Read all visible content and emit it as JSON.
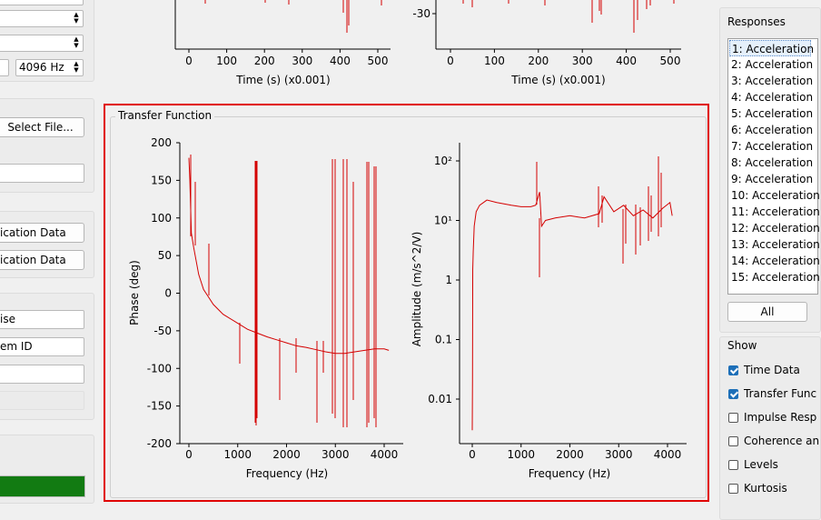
{
  "left": {
    "sample_rate": "4096 Hz",
    "select_file": "Select File...",
    "calib_btn_1": "ication Data",
    "calib_btn_2": "ication Data",
    "field_ise": "ise",
    "field_em_id": "em ID"
  },
  "top_plots": {
    "left_xlabel": "Time (s) (x0.001)",
    "right_xlabel": "Time (s) (x0.001)",
    "x_ticks": [
      "0",
      "100",
      "200",
      "300",
      "400",
      "500"
    ],
    "right_ytick": "-30"
  },
  "transfer_function": {
    "title": "Transfer Function",
    "phase_ylabel": "Phase (deg)",
    "phase_xlabel": "Frequency (Hz)",
    "phase_yticks": [
      "200",
      "150",
      "100",
      "50",
      "0",
      "-50",
      "-100",
      "-150",
      "-200"
    ],
    "amp_ylabel": "Amplitude (m/s^2/V)",
    "amp_xlabel": "Frequency (Hz)",
    "amp_yticks": [
      "10²",
      "10¹",
      "1",
      "0.1",
      "0.01"
    ],
    "x_ticks": [
      "0",
      "1000",
      "2000",
      "3000",
      "4000"
    ]
  },
  "chart_data": [
    {
      "type": "line",
      "xlabel": "Frequency (Hz)",
      "ylabel": "Phase (deg)",
      "xlim": [
        -200,
        4300
      ],
      "ylim": [
        -200,
        200
      ],
      "series": [
        {
          "color": "#d40000",
          "x": [
            0,
            20,
            50,
            100,
            200,
            300,
            400,
            500,
            700,
            1000,
            1200,
            1400,
            1600,
            1800,
            2000,
            2200,
            2400,
            2600,
            2800,
            3000,
            3200,
            3400,
            3600,
            3800,
            4000,
            4096
          ],
          "y": [
            180,
            150,
            80,
            60,
            25,
            5,
            -5,
            -15,
            -28,
            -40,
            -48,
            -53,
            -58,
            -62,
            -66,
            -70,
            -72,
            -75,
            -78,
            -80,
            -80,
            -78,
            -76,
            -74,
            -74,
            -76
          ]
        }
      ]
    },
    {
      "type": "line",
      "xlabel": "Frequency (Hz)",
      "ylabel": "Amplitude (m/s^2/V)",
      "log_y": true,
      "xlim": [
        -200,
        4300
      ],
      "ylim": [
        0.002,
        200
      ],
      "series": [
        {
          "color": "#d40000",
          "x": [
            0,
            5,
            10,
            20,
            40,
            80,
            150,
            300,
            500,
            800,
            1000,
            1200,
            1300,
            1380,
            1420,
            1500,
            1700,
            2000,
            2300,
            2600,
            2700,
            2900,
            3100,
            3300,
            3500,
            3700,
            3900,
            4050,
            4096
          ],
          "y": [
            0.003,
            0.02,
            1.5,
            3,
            8,
            14,
            18,
            22,
            20,
            18,
            17,
            17,
            18,
            30,
            8,
            10,
            11,
            12,
            11,
            13,
            25,
            14,
            18,
            12,
            15,
            11,
            16,
            20,
            12
          ]
        }
      ]
    }
  ],
  "responses": {
    "title": "Responses",
    "items": [
      "1: Acceleration",
      "2: Acceleration",
      "3: Acceleration",
      "4: Acceleration",
      "5: Acceleration",
      "6: Acceleration",
      "7: Acceleration",
      "8: Acceleration",
      "9: Acceleration",
      "10: Acceleration",
      "11: Acceleration",
      "12: Acceleration",
      "13: Acceleration",
      "14: Acceleration",
      "15: Acceleration"
    ],
    "all_button": "All"
  },
  "show": {
    "title": "Show",
    "options": [
      {
        "label": "Time Data",
        "checked": true
      },
      {
        "label": "Transfer Func",
        "checked": true
      },
      {
        "label": "Impulse Resp",
        "checked": false
      },
      {
        "label": "Coherence an",
        "checked": false
      },
      {
        "label": "Levels",
        "checked": false
      },
      {
        "label": "Kurtosis",
        "checked": false
      }
    ]
  }
}
